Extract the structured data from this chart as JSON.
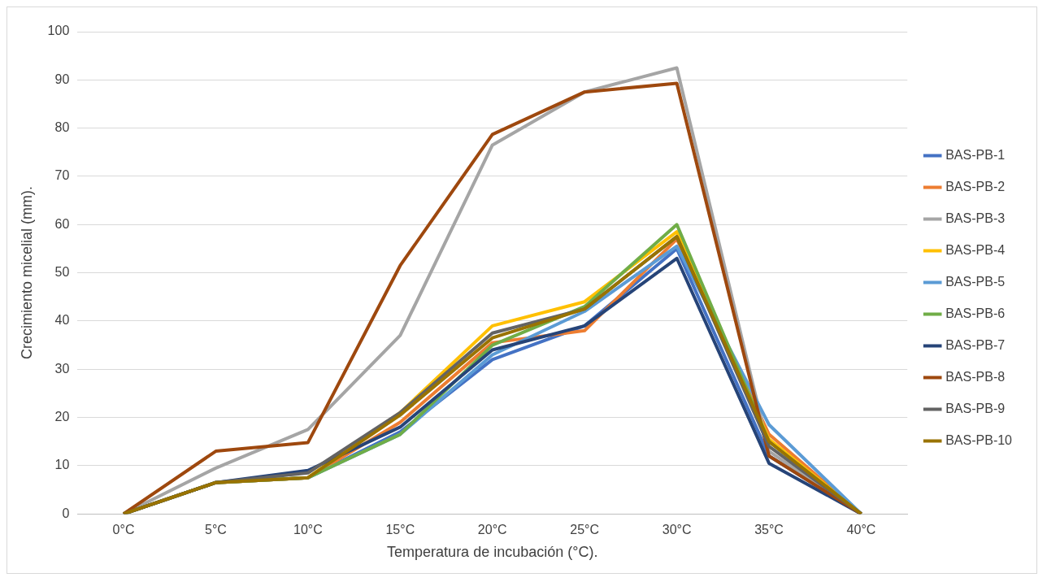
{
  "chart_data": {
    "type": "line",
    "xlabel": "Temperatura de incubación (°C).",
    "ylabel": "Crecimiento micelial (mm).",
    "categories": [
      "0°C",
      "5°C",
      "10°C",
      "15°C",
      "20°C",
      "25°C",
      "30°C",
      "35°C",
      "40°C"
    ],
    "ylim": [
      0,
      100
    ],
    "yticks": [
      0,
      10,
      20,
      30,
      40,
      50,
      60,
      70,
      80,
      90,
      100
    ],
    "grid": "y",
    "legend": "right",
    "marker": "none",
    "line_style": "solid",
    "series": [
      {
        "name": "BAS-PB-1",
        "color": "#4472c4",
        "values": [
          0,
          6.5,
          7.5,
          17,
          32,
          39,
          55,
          12,
          0
        ]
      },
      {
        "name": "BAS-PB-2",
        "color": "#ed7d31",
        "values": [
          0,
          6.5,
          7.5,
          19,
          35.5,
          38,
          57,
          16.5,
          0
        ]
      },
      {
        "name": "BAS-PB-3",
        "color": "#a5a5a5",
        "values": [
          0,
          9.5,
          17.5,
          37,
          76.5,
          87.5,
          92.5,
          13,
          0
        ]
      },
      {
        "name": "BAS-PB-4",
        "color": "#ffc000",
        "values": [
          0,
          6.5,
          7.5,
          21,
          39,
          44,
          58.5,
          15.5,
          0
        ]
      },
      {
        "name": "BAS-PB-5",
        "color": "#5b9bd5",
        "values": [
          0,
          6.5,
          7.5,
          16.5,
          33,
          42,
          55.5,
          18.5,
          0
        ]
      },
      {
        "name": "BAS-PB-6",
        "color": "#70ad47",
        "values": [
          0,
          6.5,
          7.5,
          16.5,
          35,
          43,
          60,
          15,
          0
        ]
      },
      {
        "name": "BAS-PB-7",
        "color": "#264478",
        "values": [
          0,
          6.5,
          9,
          18,
          34,
          39,
          53,
          10.5,
          0
        ]
      },
      {
        "name": "BAS-PB-8",
        "color": "#9e480e",
        "values": [
          0,
          13,
          14.8,
          51.5,
          78.7,
          87.5,
          89.3,
          12,
          0
        ]
      },
      {
        "name": "BAS-PB-9",
        "color": "#636363",
        "values": [
          0,
          6.5,
          8.5,
          21,
          37.5,
          42.5,
          57.5,
          14,
          0
        ]
      },
      {
        "name": "BAS-PB-10",
        "color": "#997300",
        "values": [
          0,
          6.5,
          7.5,
          20.5,
          36.5,
          42.5,
          57.5,
          15,
          0
        ]
      }
    ]
  }
}
